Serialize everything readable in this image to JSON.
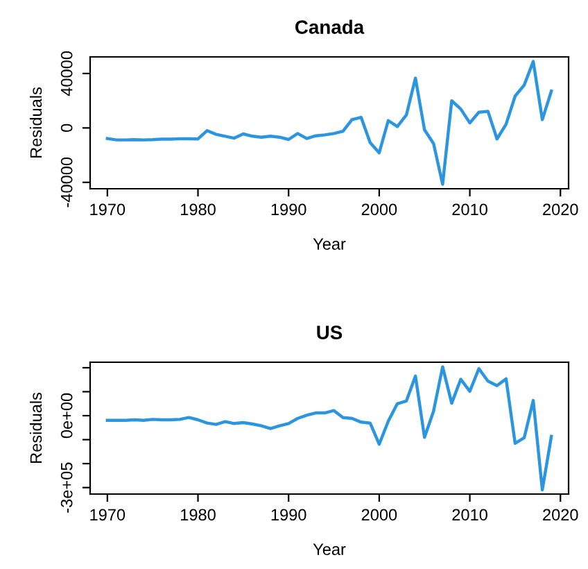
{
  "chart_data": [
    {
      "type": "line",
      "title": "Canada",
      "xlabel": "Year",
      "ylabel": "Residuals",
      "color": "#2b95e0",
      "x": [
        1970,
        1971,
        1972,
        1973,
        1974,
        1975,
        1976,
        1977,
        1978,
        1979,
        1980,
        1981,
        1982,
        1983,
        1984,
        1985,
        1986,
        1987,
        1988,
        1989,
        1990,
        1991,
        1992,
        1993,
        1994,
        1995,
        1996,
        1997,
        1998,
        1999,
        2000,
        2001,
        2002,
        2003,
        2004,
        2005,
        2006,
        2007,
        2008,
        2009,
        2010,
        2011,
        2012,
        2013,
        2014,
        2015,
        2016,
        2017,
        2018,
        2019
      ],
      "values": [
        -7800,
        -8800,
        -8800,
        -8600,
        -8800,
        -8600,
        -8200,
        -8200,
        -8000,
        -8000,
        -8100,
        -2000,
        -4700,
        -6100,
        -7500,
        -4400,
        -6100,
        -6800,
        -6100,
        -6800,
        -8500,
        -4100,
        -7800,
        -5800,
        -5100,
        -4100,
        -2400,
        6100,
        7800,
        -10800,
        -18300,
        5400,
        1000,
        9500,
        36600,
        -1400,
        -11500,
        -41400,
        20000,
        13900,
        3700,
        11500,
        12200,
        -8100,
        2700,
        23400,
        31500,
        48800,
        6100,
        27100
      ],
      "xlim": [
        1968.1,
        2020.9
      ],
      "xticks": [
        1970,
        1980,
        1990,
        2000,
        2010,
        2020
      ],
      "ylim": [
        -44700,
        52200
      ],
      "yticks": [
        -40000,
        0,
        40000
      ],
      "grid": false,
      "legend": false
    },
    {
      "type": "line",
      "title": "US",
      "xlabel": "Year",
      "ylabel": "Residuals",
      "color": "#2b95e0",
      "x": [
        1970,
        1971,
        1972,
        1973,
        1974,
        1975,
        1976,
        1977,
        1978,
        1979,
        1980,
        1981,
        1982,
        1983,
        1984,
        1985,
        1986,
        1987,
        1988,
        1989,
        1990,
        1991,
        1992,
        1993,
        1994,
        1995,
        1996,
        1997,
        1998,
        1999,
        2000,
        2001,
        2002,
        2003,
        2004,
        2005,
        2006,
        2007,
        2008,
        2009,
        2010,
        2011,
        2012,
        2013,
        2014,
        2015,
        2016,
        2017,
        2018,
        2019
      ],
      "values": [
        -19200,
        -19200,
        -19200,
        -17300,
        -19200,
        -15400,
        -17300,
        -17300,
        -15400,
        -7700,
        -17300,
        -30800,
        -36500,
        -25000,
        -32700,
        -28800,
        -34600,
        -42300,
        -53800,
        -42300,
        -32700,
        -11500,
        1900,
        11500,
        11500,
        21200,
        -7700,
        -11500,
        -26900,
        -30800,
        -119200,
        -23100,
        50000,
        61500,
        165400,
        -90400,
        19200,
        203800,
        51900,
        151900,
        101900,
        196100,
        144200,
        125000,
        153800,
        -115400,
        -92300,
        63500,
        -309600,
        -86500
      ],
      "xlim": [
        1968.1,
        2020.9
      ],
      "xticks": [
        1970,
        1980,
        1990,
        2000,
        2010,
        2020
      ],
      "ylim": [
        -327000,
        223000
      ],
      "yticks": [
        {
          "value": -300000,
          "label": "-3e+05"
        },
        {
          "value": -200000,
          "label": null
        },
        {
          "value": -100000,
          "label": null
        },
        {
          "value": 0,
          "label": "0e+00"
        },
        {
          "value": 100000,
          "label": null
        },
        {
          "value": 200000,
          "label": null
        }
      ],
      "grid": false,
      "legend": false
    }
  ]
}
